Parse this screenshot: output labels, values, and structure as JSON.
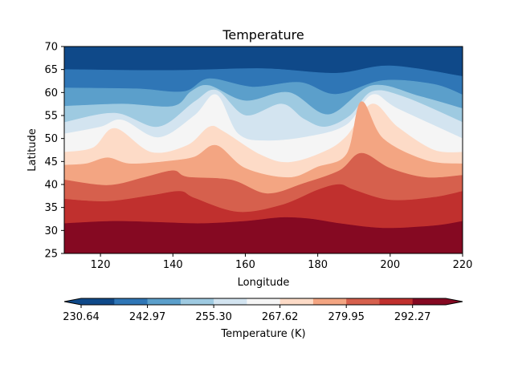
{
  "chart_data": {
    "type": "heatmap",
    "title": "Temperature",
    "xlabel": "Longitude",
    "ylabel": "Latitude",
    "xlim": [
      110,
      220
    ],
    "ylim": [
      25,
      70
    ],
    "x_ticks": [
      120,
      140,
      160,
      180,
      200,
      220
    ],
    "y_ticks": [
      25,
      30,
      35,
      40,
      45,
      50,
      55,
      60,
      65,
      70
    ],
    "colorbar": {
      "label": "Temperature (K)",
      "orientation": "horizontal",
      "placement": "bottom",
      "extend": "both",
      "levels": [
        230.64,
        236.81,
        242.97,
        249.14,
        255.3,
        261.46,
        267.62,
        273.79,
        279.95,
        286.11,
        292.27,
        298.44
      ],
      "tick_labels": [
        "230.64",
        "242.97",
        "255.30",
        "267.62",
        "279.95",
        "292.27"
      ],
      "colors": [
        "#0f4989",
        "#2f76b6",
        "#5b9fcb",
        "#9ecae1",
        "#d3e4f0",
        "#f5f5f5",
        "#fddbc7",
        "#f3a582",
        "#d6604d",
        "#c0302e",
        "#850922"
      ]
    },
    "boundaries": [
      {
        "level": 236.81,
        "points": [
          [
            110,
            65
          ],
          [
            140,
            64.8
          ],
          [
            165,
            65.2
          ],
          [
            185,
            64.2
          ],
          [
            200,
            65.8
          ],
          [
            220,
            63.5
          ]
        ]
      },
      {
        "level": 242.97,
        "points": [
          [
            110,
            61
          ],
          [
            130,
            60.8
          ],
          [
            143,
            60.2
          ],
          [
            150,
            63
          ],
          [
            162,
            61.2
          ],
          [
            175,
            62.2
          ],
          [
            185,
            59.6
          ],
          [
            198,
            62.6
          ],
          [
            212,
            61.8
          ],
          [
            220,
            59.5
          ]
        ]
      },
      {
        "level": 249.14,
        "points": [
          [
            110,
            57
          ],
          [
            126,
            57.5
          ],
          [
            140,
            57
          ],
          [
            145,
            60.2
          ],
          [
            150,
            61.5
          ],
          [
            160,
            58.2
          ],
          [
            172,
            60
          ],
          [
            183,
            55.2
          ],
          [
            195,
            61.5
          ],
          [
            208,
            59.2
          ],
          [
            220,
            56.5
          ]
        ]
      },
      {
        "level": 255.3,
        "points": [
          [
            110,
            53.5
          ],
          [
            124,
            55.5
          ],
          [
            136,
            52.5
          ],
          [
            146,
            58
          ],
          [
            152,
            60.5
          ],
          [
            160,
            55
          ],
          [
            170,
            57.5
          ],
          [
            176,
            54.3
          ],
          [
            182,
            52.5
          ],
          [
            189,
            55
          ],
          [
            195,
            60.2
          ],
          [
            204,
            59
          ],
          [
            220,
            53.5
          ]
        ]
      },
      {
        "level": 261.46,
        "points": [
          [
            110,
            51
          ],
          [
            120,
            52.5
          ],
          [
            126,
            54
          ],
          [
            136,
            50.2
          ],
          [
            146,
            55
          ],
          [
            152,
            59.5
          ],
          [
            158,
            51
          ],
          [
            166,
            49.5
          ],
          [
            178,
            50.5
          ],
          [
            188,
            53
          ],
          [
            195,
            59.5
          ],
          [
            202,
            56.5
          ],
          [
            220,
            50
          ]
        ]
      },
      {
        "level": 267.62,
        "points": [
          [
            110,
            47
          ],
          [
            118,
            48
          ],
          [
            124,
            52.2
          ],
          [
            134,
            47
          ],
          [
            144,
            48.5
          ],
          [
            150,
            52.5
          ],
          [
            154,
            51.5
          ],
          [
            164,
            46.5
          ],
          [
            172,
            44.8
          ],
          [
            182,
            47.2
          ],
          [
            188,
            50.5
          ],
          [
            195,
            57.5
          ],
          [
            202,
            52.5
          ],
          [
            212,
            47.5
          ],
          [
            220,
            47
          ]
        ]
      },
      {
        "level": 273.79,
        "points": [
          [
            110,
            44.2
          ],
          [
            116,
            44.5
          ],
          [
            122,
            45.8
          ],
          [
            128,
            44.5
          ],
          [
            138,
            45
          ],
          [
            146,
            46
          ],
          [
            152,
            48.5
          ],
          [
            160,
            43.5
          ],
          [
            172,
            41.5
          ],
          [
            180,
            43.8
          ],
          [
            188,
            46.6
          ],
          [
            192,
            58
          ],
          [
            198,
            50
          ],
          [
            210,
            45.2
          ],
          [
            220,
            44.5
          ]
        ]
      },
      {
        "level": 279.95,
        "points": [
          [
            110,
            41
          ],
          [
            122,
            39.8
          ],
          [
            132,
            41.5
          ],
          [
            140,
            43
          ],
          [
            144,
            41.6
          ],
          [
            156,
            41
          ],
          [
            166,
            38
          ],
          [
            176,
            40.2
          ],
          [
            186,
            43
          ],
          [
            192,
            46.8
          ],
          [
            200,
            43.5
          ],
          [
            210,
            41.5
          ],
          [
            220,
            42
          ]
        ]
      },
      {
        "level": 286.11,
        "points": [
          [
            110,
            36.8
          ],
          [
            122,
            36.3
          ],
          [
            134,
            37.6
          ],
          [
            142,
            38.5
          ],
          [
            146,
            37
          ],
          [
            158,
            34
          ],
          [
            170,
            35.5
          ],
          [
            180,
            38.8
          ],
          [
            186,
            40
          ],
          [
            190,
            38.8
          ],
          [
            200,
            36.6
          ],
          [
            212,
            37.2
          ],
          [
            220,
            38.5
          ]
        ]
      },
      {
        "level": 292.27,
        "points": [
          [
            110,
            31.5
          ],
          [
            124,
            32
          ],
          [
            138,
            31.7
          ],
          [
            148,
            31.5
          ],
          [
            160,
            32
          ],
          [
            170,
            32.8
          ],
          [
            178,
            32.5
          ],
          [
            186,
            31.5
          ],
          [
            198,
            30.5
          ],
          [
            212,
            31
          ],
          [
            220,
            32
          ]
        ]
      }
    ]
  }
}
